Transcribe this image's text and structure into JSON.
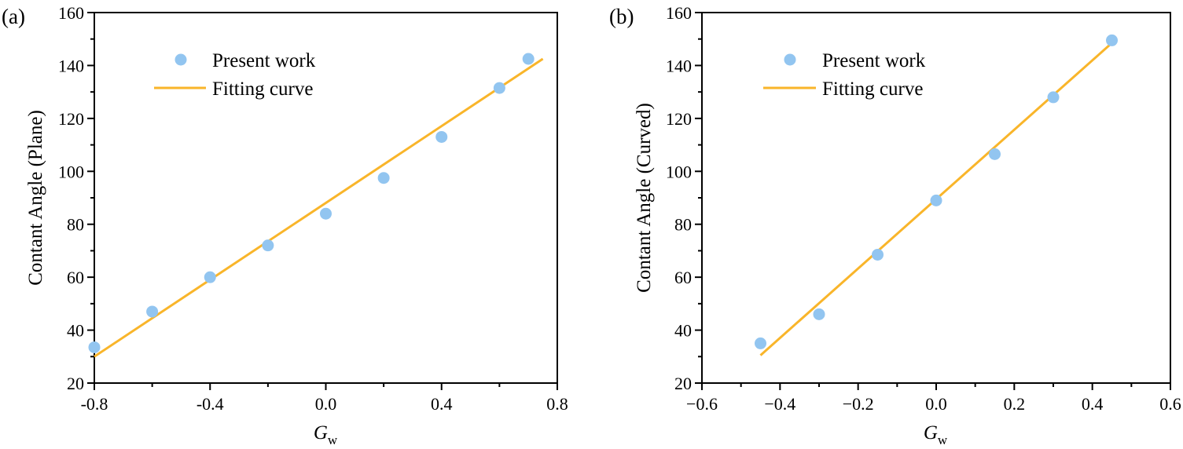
{
  "chart_data": [
    {
      "type": "scatter",
      "panel_label": "(a)",
      "xlabel_main": "G",
      "xlabel_sub": "w",
      "ylabel": "Contant Angle (Plane)",
      "xlim": [
        -0.8,
        0.8
      ],
      "ylim": [
        20,
        160
      ],
      "x_ticks": [
        -0.8,
        -0.4,
        0.0,
        0.4,
        0.8
      ],
      "x_tick_labels": [
        "-0.8",
        "-0.4",
        "0.0",
        "0.4",
        "0.8"
      ],
      "y_ticks": [
        20,
        40,
        60,
        80,
        100,
        120,
        140,
        160
      ],
      "y_tick_labels": [
        "20",
        "40",
        "60",
        "80",
        "100",
        "120",
        "140",
        "160"
      ],
      "legend": [
        "Present work",
        "Fitting curve"
      ],
      "legend_position": "top-left",
      "series": [
        {
          "name": "Present work",
          "kind": "markers",
          "x": [
            -0.8,
            -0.6,
            -0.4,
            -0.2,
            0.0,
            0.2,
            0.4,
            0.6,
            0.7
          ],
          "y": [
            33.5,
            47,
            60,
            72,
            84,
            97.5,
            113,
            131.5,
            142.5
          ]
        },
        {
          "name": "Fitting curve",
          "kind": "line",
          "x": [
            -0.8,
            0.75
          ],
          "y": [
            30,
            142.5
          ]
        }
      ],
      "colors": {
        "marker": "#92c5f0",
        "line": "#f9b52a"
      }
    },
    {
      "type": "scatter",
      "panel_label": "(b)",
      "xlabel_main": "G",
      "xlabel_sub": "w",
      "ylabel": "Contant Angle (Curved)",
      "xlim": [
        -0.6,
        0.6
      ],
      "ylim": [
        20,
        160
      ],
      "x_ticks": [
        -0.6,
        -0.4,
        -0.2,
        0.0,
        0.2,
        0.4,
        0.6
      ],
      "x_tick_labels": [
        "−0.6",
        "−0.4",
        "−0.2",
        "0.0",
        "0.2",
        "0.4",
        "0.6"
      ],
      "y_ticks": [
        20,
        40,
        60,
        80,
        100,
        120,
        140,
        160
      ],
      "y_tick_labels": [
        "20",
        "40",
        "60",
        "80",
        "100",
        "120",
        "140",
        "160"
      ],
      "legend": [
        "Present work",
        "Fitting curve"
      ],
      "legend_position": "top-left",
      "series": [
        {
          "name": "Present work",
          "kind": "markers",
          "x": [
            -0.45,
            -0.3,
            -0.15,
            0.0,
            0.15,
            0.3,
            0.45
          ],
          "y": [
            35,
            46,
            68.5,
            89,
            106.5,
            128,
            149.5
          ]
        },
        {
          "name": "Fitting curve",
          "kind": "line",
          "x": [
            -0.45,
            0.45
          ],
          "y": [
            30.5,
            148.5
          ]
        }
      ],
      "colors": {
        "marker": "#92c5f0",
        "line": "#f9b52a"
      }
    }
  ]
}
